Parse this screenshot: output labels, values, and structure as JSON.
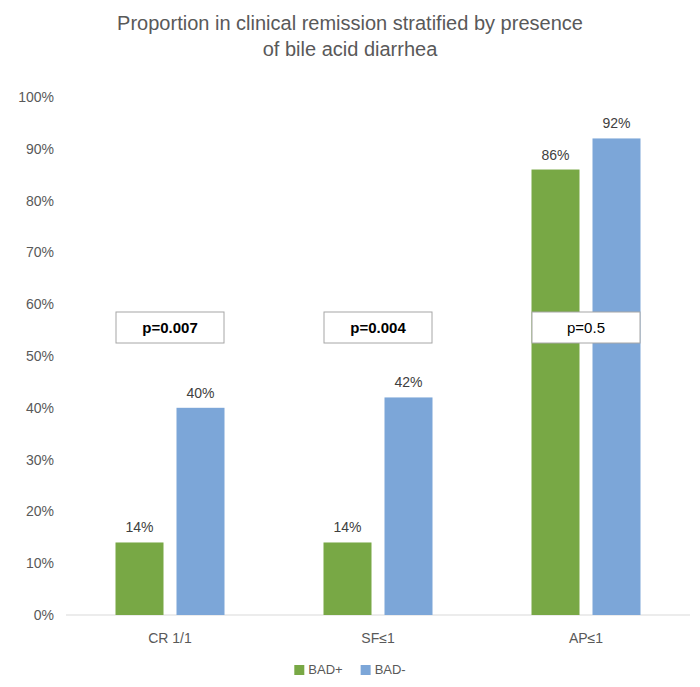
{
  "chart_data": {
    "type": "bar",
    "title": "Proportion in clinical remission stratified by presence of bile acid diarrhea",
    "categories": [
      "CR 1/1",
      "SF≤1",
      "AP≤1"
    ],
    "series": [
      {
        "name": "BAD+",
        "color": "#78a845",
        "values": [
          14,
          14,
          86
        ],
        "value_labels": [
          "14%",
          "14%",
          "86%"
        ]
      },
      {
        "name": "BAD-",
        "color": "#7ca6d8",
        "values": [
          40,
          42,
          92
        ],
        "value_labels": [
          "40%",
          "42%",
          "92%"
        ]
      }
    ],
    "ylim": [
      0,
      100
    ],
    "yticks": [
      {
        "value": 0,
        "label": "0%"
      },
      {
        "value": 10,
        "label": "10%"
      },
      {
        "value": 20,
        "label": "20%"
      },
      {
        "value": 30,
        "label": "30%"
      },
      {
        "value": 40,
        "label": "40%"
      },
      {
        "value": 50,
        "label": "50%"
      },
      {
        "value": 60,
        "label": "60%"
      },
      {
        "value": 70,
        "label": "70%"
      },
      {
        "value": 80,
        "label": "80%"
      },
      {
        "value": 90,
        "label": "90%"
      },
      {
        "value": 100,
        "label": "100%"
      }
    ],
    "grid": false,
    "data_labels": true,
    "legend": "bottom",
    "annotations": [
      "p=0.007",
      "p=0.004",
      "p=0.5"
    ]
  }
}
